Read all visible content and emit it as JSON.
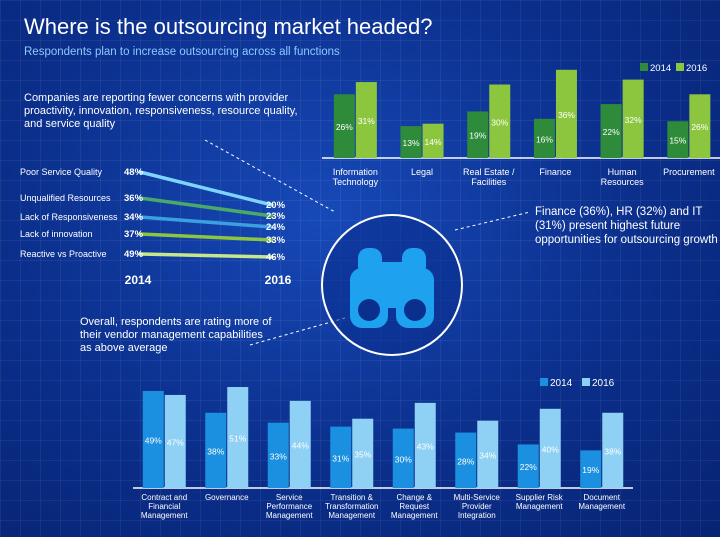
{
  "header": {
    "title": "Where is the outsourcing market headed?",
    "subtitle": "Respondents plan to increase outsourcing across all functions"
  },
  "notes": {
    "concerns": "Companies are reporting fewer concerns with provider proactivity, innovation, responsiveness, resource quality, and service quality",
    "finance": "Finance (36%), HR (32%) and IT (31%) present highest future opportunities for outsourcing growth",
    "vendor": "Overall, respondents are rating more of their vendor management capabilities as above average"
  },
  "icon": "binoculars-icon",
  "colors": {
    "dark_green": "#2e8b3a",
    "light_green": "#8cc63f",
    "dark_blue": "#1b8fe0",
    "light_blue": "#8fd0f5",
    "slope_colors": [
      "#7fd3ff",
      "#4aa86a",
      "#3aa0e0",
      "#8cc63f",
      "#c8e68a"
    ]
  },
  "chart_data": [
    {
      "type": "bar",
      "categories": [
        "Information\nTechnology",
        "Legal",
        "Real Estate /\nFacilities",
        "Finance",
        "Human\nResources",
        "Procurement"
      ],
      "series": [
        {
          "name": "2014",
          "values": [
            26,
            13,
            19,
            16,
            22,
            15
          ],
          "labels": [
            "26%",
            "13%",
            "19%",
            "16%",
            "22%",
            "15%"
          ]
        },
        {
          "name": "2016",
          "values": [
            31,
            14,
            30,
            36,
            32,
            26
          ],
          "labels": [
            "31%",
            "14%",
            "30%",
            "36%",
            "32%",
            "26%"
          ]
        }
      ],
      "legend": "top-right"
    },
    {
      "type": "line",
      "x": [
        "2014",
        "2016"
      ],
      "series": [
        {
          "name": "Poor Service Quality",
          "values": [
            48,
            20
          ],
          "labels": [
            "48%",
            "20%"
          ]
        },
        {
          "name": "Unqualified Resources",
          "values": [
            36,
            23
          ],
          "labels": [
            "36%",
            "23%"
          ]
        },
        {
          "name": "Lack of Responsiveness",
          "values": [
            34,
            24
          ],
          "labels": [
            "34%",
            "24%"
          ]
        },
        {
          "name": "Lack of innovation",
          "values": [
            37,
            33
          ],
          "labels": [
            "37%",
            "33%"
          ]
        },
        {
          "name": "Reactive vs Proactive",
          "values": [
            49,
            46
          ],
          "labels": [
            "49%",
            "46%"
          ]
        }
      ]
    },
    {
      "type": "bar",
      "categories": [
        "Contract and\nFinancial\nManagement",
        "Governance",
        "Service\nPerformance\nManagement",
        "Transition &\nTransformation\nManagement",
        "Change &\nRequest\nManagement",
        "Multi-Service\nProvider\nIntegration",
        "Supplier Risk\nManagement",
        "Document\nManagement"
      ],
      "series": [
        {
          "name": "2014",
          "values": [
            49,
            38,
            33,
            31,
            30,
            28,
            22,
            19
          ],
          "labels": [
            "49%",
            "38%",
            "33%",
            "31%",
            "30%",
            "28%",
            "22%",
            "19%"
          ]
        },
        {
          "name": "2016",
          "values": [
            47,
            51,
            44,
            35,
            43,
            34,
            40,
            38
          ],
          "labels": [
            "47%",
            "51%",
            "44%",
            "35%",
            "43%",
            "34%",
            "40%",
            "38%"
          ]
        }
      ],
      "legend": "top-right"
    }
  ]
}
